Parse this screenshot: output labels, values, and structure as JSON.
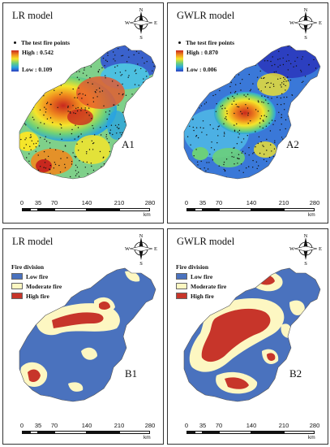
{
  "panels": {
    "a1": {
      "title": "LR model",
      "label": "A1",
      "legend_points": "The test fire points",
      "high": "High : 0.542",
      "low": "Low : 0.109"
    },
    "a2": {
      "title": "GWLR model",
      "label": "A2",
      "legend_points": "The test fire points",
      "high": "High : 0.870",
      "low": "Low : 0.006"
    },
    "b1": {
      "title": "LR model",
      "label": "B1",
      "legend_title": "Fire division"
    },
    "b2": {
      "title": "GWLR model",
      "label": "B2",
      "legend_title": "Fire division"
    }
  },
  "fire_division": {
    "classes": [
      {
        "label": "Low fire",
        "color": "#4a72be"
      },
      {
        "label": "Moderate fire",
        "color": "#fdf7c2"
      },
      {
        "label": "High fire",
        "color": "#c7352a"
      }
    ]
  },
  "compass": {
    "n": "N",
    "s": "S",
    "e": "E",
    "w": "W"
  },
  "scale_bar": {
    "ticks": [
      "0",
      "35",
      "70",
      "140",
      "210",
      "280"
    ],
    "unit": "km"
  },
  "gradient_colors": [
    "#c8281e",
    "#f08a1e",
    "#f5e52a",
    "#6cd07a",
    "#2aa4e0",
    "#2c3fc0"
  ]
}
